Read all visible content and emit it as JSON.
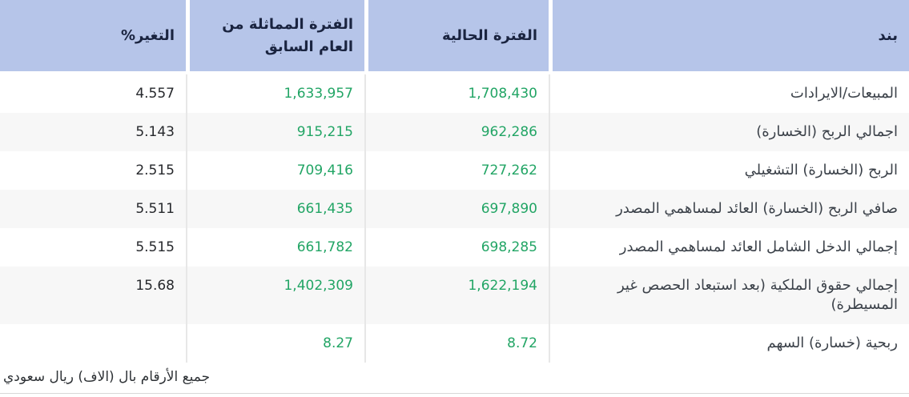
{
  "table": {
    "columns": [
      {
        "key": "item",
        "label": "بند"
      },
      {
        "key": "current",
        "label": "الفترة الحالية"
      },
      {
        "key": "previous",
        "label": "الفترة المماثلة من العام السابق"
      },
      {
        "key": "change",
        "label": "التغير%"
      }
    ],
    "rows": [
      {
        "item": "المبيعات/الايرادات",
        "current": "1,708,430",
        "previous": "1,633,957",
        "change": "4.557"
      },
      {
        "item": "اجمالي الربح (الخسارة)",
        "current": "962,286",
        "previous": "915,215",
        "change": "5.143"
      },
      {
        "item": "الربح (الخسارة) التشغيلي",
        "current": "727,262",
        "previous": "709,416",
        "change": "2.515"
      },
      {
        "item": "صافي الربح (الخسارة) العائد لمساهمي المصدر",
        "current": "697,890",
        "previous": "661,435",
        "change": "5.511"
      },
      {
        "item": "إجمالي الدخل الشامل العائد لمساهمي المصدر",
        "current": "698,285",
        "previous": "661,782",
        "change": "5.515"
      },
      {
        "item": "إجمالي حقوق الملكية (بعد استبعاد الحصص غير المسيطرة)",
        "current": "1,622,194",
        "previous": "1,402,309",
        "change": "15.68"
      },
      {
        "item": "ربحية (خسارة) السهم",
        "current": "8.72",
        "previous": "8.27",
        "change": ""
      }
    ],
    "footnote": "جميع الأرقام بال (الاف) ريال سعودي"
  },
  "colors": {
    "header_bg": "#b6c5e9",
    "header_text": "#1a2440",
    "value_green": "#22a565",
    "change_text": "#26282c",
    "label_text": "#3c424a",
    "row_alt_bg": "#f7f7f7",
    "separator": "#e7e7e7",
    "footnote_text": "#2f3337",
    "bottom_line": "#d8d8d8"
  }
}
